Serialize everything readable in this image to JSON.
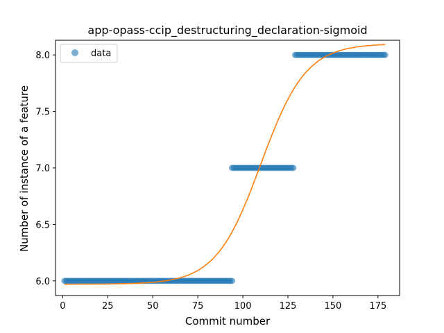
{
  "chart_data": {
    "type": "scatter",
    "title": "app-opass-ccip_destructuring_declaration-sigmoid",
    "xlabel": "Commit number",
    "ylabel": "Number of instance of a feature",
    "xlim": [
      -4,
      187
    ],
    "ylim": [
      5.87,
      8.13
    ],
    "xticks": [
      0,
      25,
      50,
      75,
      100,
      125,
      150,
      175
    ],
    "yticks": [
      6.0,
      6.5,
      7.0,
      7.5,
      8.0
    ],
    "ytick_labels": [
      "6.0",
      "6.5",
      "7.0",
      "7.5",
      "8.0"
    ],
    "grid": false,
    "legend": {
      "position": "top-left",
      "entries": [
        "data"
      ]
    },
    "series": [
      {
        "name": "data",
        "kind": "points",
        "color": "#1f77b4",
        "segments": [
          {
            "x_start": 1,
            "x_end": 94,
            "y": 6.0
          },
          {
            "x_start": 94,
            "x_end": 128,
            "y": 7.0
          },
          {
            "x_start": 129,
            "x_end": 179,
            "y": 8.0
          }
        ]
      },
      {
        "kind": "sigmoid-fit",
        "color": "#ff7f0e",
        "x_range": [
          1,
          179
        ],
        "lower": 5.97,
        "upper": 8.1,
        "midpoint": 110,
        "scale": 12.5
      }
    ]
  }
}
